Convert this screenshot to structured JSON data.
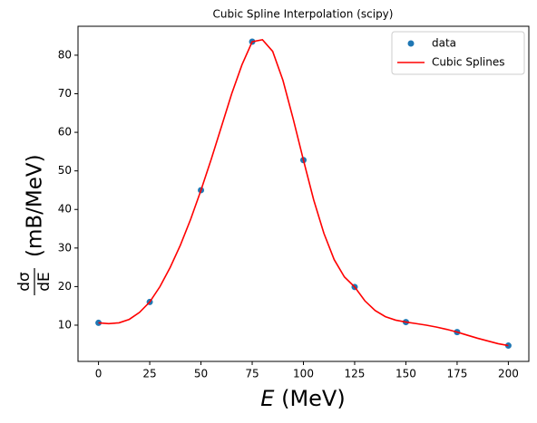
{
  "chart_data": {
    "type": "line",
    "title": "Cubic Spline Interpolation (scipy)",
    "xlabel": {
      "symbol": "E",
      "unit": "(MeV)"
    },
    "ylabel": {
      "numerator": "dσ",
      "denominator": "dE",
      "unit": "(mB/MeV)"
    },
    "xlim": [
      -10,
      210
    ],
    "ylim": [
      0.6,
      87.5
    ],
    "xticks": [
      0,
      25,
      50,
      75,
      100,
      125,
      150,
      175,
      200
    ],
    "yticks": [
      10,
      20,
      30,
      40,
      50,
      60,
      70,
      80
    ],
    "grid": false,
    "legend": "upper right",
    "series": [
      {
        "name": "data",
        "color": "#1f77b4",
        "style": "markers",
        "x": [
          0,
          25,
          50,
          75,
          100,
          125,
          150,
          175,
          200
        ],
        "values": [
          10.6,
          16,
          45,
          83.5,
          52.8,
          19.9,
          10.8,
          8.2,
          4.7
        ]
      },
      {
        "name": "Cubic Splines",
        "color": "#ff0000",
        "style": "line",
        "x": [
          0,
          5,
          10,
          15,
          20,
          25,
          30,
          35,
          40,
          45,
          50,
          55,
          60,
          65,
          70,
          75,
          80,
          85,
          90,
          95,
          100,
          105,
          110,
          115,
          120,
          125,
          130,
          135,
          140,
          145,
          150,
          155,
          160,
          165,
          170,
          175,
          180,
          185,
          190,
          195,
          200
        ],
        "values": [
          10.6,
          10.4,
          10.6,
          11.5,
          13.3,
          16,
          20,
          25,
          30.8,
          37.5,
          45,
          53,
          61.5,
          70,
          77.5,
          83.5,
          84,
          81,
          73.5,
          63.5,
          52.8,
          42.5,
          33.8,
          27,
          22.5,
          19.9,
          16.3,
          13.8,
          12.2,
          11.3,
          10.8,
          10.4,
          10,
          9.5,
          8.9,
          8.2,
          7.4,
          6.6,
          5.9,
          5.2,
          4.7
        ]
      }
    ]
  }
}
